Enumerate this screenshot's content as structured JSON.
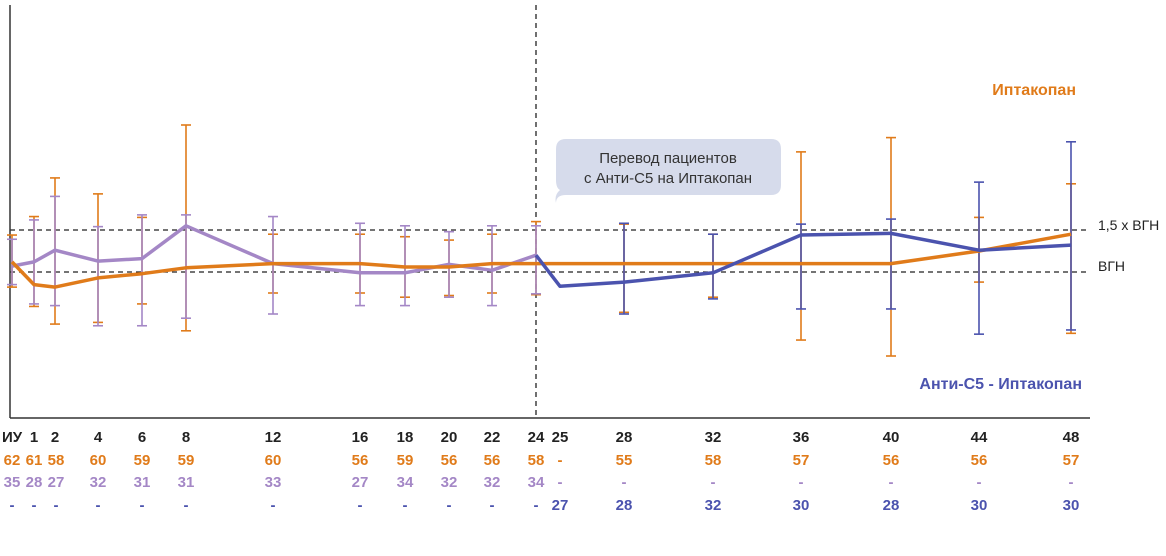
{
  "colors": {
    "iptacopan": "#E07B1A",
    "purple": "#A487C6",
    "switch": "#4B53AE",
    "axis": "#333333",
    "callout_bg": "#D6DBEB"
  },
  "labels": {
    "iptacopan": "Иптакопан",
    "switch": "Анти-С5 - Иптакопан",
    "ref_upper": "1,5 x ВГН",
    "ref_lower": "ВГН",
    "callout_line1": "Перевод пациентов",
    "callout_line2": "с Анти-С5 на Иптакопан"
  },
  "chart_data": {
    "type": "line",
    "x_ticks": [
      {
        "x": 0,
        "label": "ИУ"
      },
      {
        "x": 1,
        "label": "1"
      },
      {
        "x": 2,
        "label": "2"
      },
      {
        "x": 4,
        "label": "4"
      },
      {
        "x": 6,
        "label": "6"
      },
      {
        "x": 8,
        "label": "8"
      },
      {
        "x": 12,
        "label": "12"
      },
      {
        "x": 16,
        "label": "16"
      },
      {
        "x": 18,
        "label": "18"
      },
      {
        "x": 20,
        "label": "20"
      },
      {
        "x": 22,
        "label": "22"
      },
      {
        "x": 24,
        "label": "24"
      },
      {
        "x": 25,
        "label": "25"
      },
      {
        "x": 28,
        "label": "28"
      },
      {
        "x": 32,
        "label": "32"
      },
      {
        "x": 36,
        "label": "36"
      },
      {
        "x": 40,
        "label": "40"
      },
      {
        "x": 44,
        "label": "44"
      },
      {
        "x": 48,
        "label": "48"
      }
    ],
    "ylim": [
      0.3,
      2.3
    ],
    "reference_lines": [
      {
        "name": "1,5 x ВГН",
        "y": 1.5
      },
      {
        "name": "ВГН",
        "y": 1.0
      }
    ],
    "switch_line_x": 24,
    "series": [
      {
        "name": "Иптакопан",
        "color": "#E07B1A",
        "points": [
          {
            "x": 0,
            "y": 1.12,
            "lo": 0.82,
            "hi": 1.44
          },
          {
            "x": 1,
            "y": 0.85,
            "lo": 0.59,
            "hi": 1.66
          },
          {
            "x": 2,
            "y": 0.82,
            "lo": 0.38,
            "hi": 2.12
          },
          {
            "x": 4,
            "y": 0.93,
            "lo": 0.4,
            "hi": 1.93
          },
          {
            "x": 6,
            "y": 0.98,
            "lo": 0.62,
            "hi": 1.65
          },
          {
            "x": 8,
            "y": 1.05,
            "lo": 0.3,
            "hi": 2.75
          },
          {
            "x": 12,
            "y": 1.1,
            "lo": 0.75,
            "hi": 1.45
          },
          {
            "x": 16,
            "y": 1.1,
            "lo": 0.75,
            "hi": 1.45
          },
          {
            "x": 18,
            "y": 1.06,
            "lo": 0.7,
            "hi": 1.42
          },
          {
            "x": 20,
            "y": 1.06,
            "lo": 0.72,
            "hi": 1.38
          },
          {
            "x": 22,
            "y": 1.1,
            "lo": 0.75,
            "hi": 1.45
          },
          {
            "x": 24,
            "y": 1.1,
            "lo": 0.73,
            "hi": 1.6
          },
          {
            "x": 28,
            "y": 1.1,
            "lo": 0.52,
            "hi": 1.57
          },
          {
            "x": 32,
            "y": 1.1,
            "lo": 0.7,
            "hi": 1.45
          },
          {
            "x": 36,
            "y": 1.1,
            "lo": 0.19,
            "hi": 2.43
          },
          {
            "x": 40,
            "y": 1.1,
            "lo": 0.0,
            "hi": 2.6
          },
          {
            "x": 44,
            "y": 1.25,
            "lo": 0.88,
            "hi": 1.65
          },
          {
            "x": 48,
            "y": 1.45,
            "lo": 0.27,
            "hi": 2.05
          }
        ]
      },
      {
        "name": "purple",
        "color": "#A487C6",
        "points": [
          {
            "x": 0,
            "y": 1.07,
            "lo": 0.85,
            "hi": 1.39
          },
          {
            "x": 1,
            "y": 1.12,
            "lo": 0.62,
            "hi": 1.62
          },
          {
            "x": 2,
            "y": 1.26,
            "lo": 0.6,
            "hi": 1.9
          },
          {
            "x": 4,
            "y": 1.13,
            "lo": 0.36,
            "hi": 1.54
          },
          {
            "x": 6,
            "y": 1.16,
            "lo": 0.36,
            "hi": 1.68
          },
          {
            "x": 8,
            "y": 1.55,
            "lo": 0.45,
            "hi": 1.68
          },
          {
            "x": 12,
            "y": 1.1,
            "lo": 0.5,
            "hi": 1.66
          },
          {
            "x": 16,
            "y": 0.99,
            "lo": 0.6,
            "hi": 1.58
          },
          {
            "x": 18,
            "y": 0.99,
            "lo": 0.6,
            "hi": 1.55
          },
          {
            "x": 20,
            "y": 1.09,
            "lo": 0.7,
            "hi": 1.48
          },
          {
            "x": 22,
            "y": 1.02,
            "lo": 0.6,
            "hi": 1.55
          },
          {
            "x": 24,
            "y": 1.2,
            "lo": 0.74,
            "hi": 1.55
          }
        ]
      },
      {
        "name": "Анти-С5 - Иптакопан",
        "color": "#4B53AE",
        "points": [
          {
            "x": 24,
            "y": 1.2
          },
          {
            "x": 25,
            "y": 0.83
          },
          {
            "x": 28,
            "y": 0.88,
            "lo": 0.5,
            "hi": 1.58
          },
          {
            "x": 32,
            "y": 0.99,
            "lo": 0.68,
            "hi": 1.45
          },
          {
            "x": 36,
            "y": 1.44,
            "lo": 0.56,
            "hi": 1.57
          },
          {
            "x": 40,
            "y": 1.46,
            "lo": 0.56,
            "hi": 1.63
          },
          {
            "x": 44,
            "y": 1.26,
            "lo": 0.26,
            "hi": 2.07
          },
          {
            "x": 48,
            "y": 1.32,
            "lo": 0.31,
            "hi": 2.55
          }
        ]
      }
    ],
    "count_rows": [
      {
        "color": "#E07B1A",
        "values": [
          "62",
          "61",
          "58",
          "60",
          "59",
          "59",
          "60",
          "56",
          "59",
          "56",
          "56",
          "58",
          "-",
          "55",
          "58",
          "57",
          "56",
          "56",
          "57"
        ]
      },
      {
        "color": "#A487C6",
        "values": [
          "35",
          "28",
          "27",
          "32",
          "31",
          "31",
          "33",
          "27",
          "34",
          "32",
          "32",
          "34",
          "-",
          "-",
          "-",
          "-",
          "-",
          "-",
          "-"
        ]
      },
      {
        "color": "#4B53AE",
        "values": [
          "-",
          "-",
          "-",
          "-",
          "-",
          "-",
          "-",
          "-",
          "-",
          "-",
          "-",
          "-",
          "27",
          "28",
          "32",
          "30",
          "28",
          "30",
          "30"
        ]
      }
    ]
  }
}
